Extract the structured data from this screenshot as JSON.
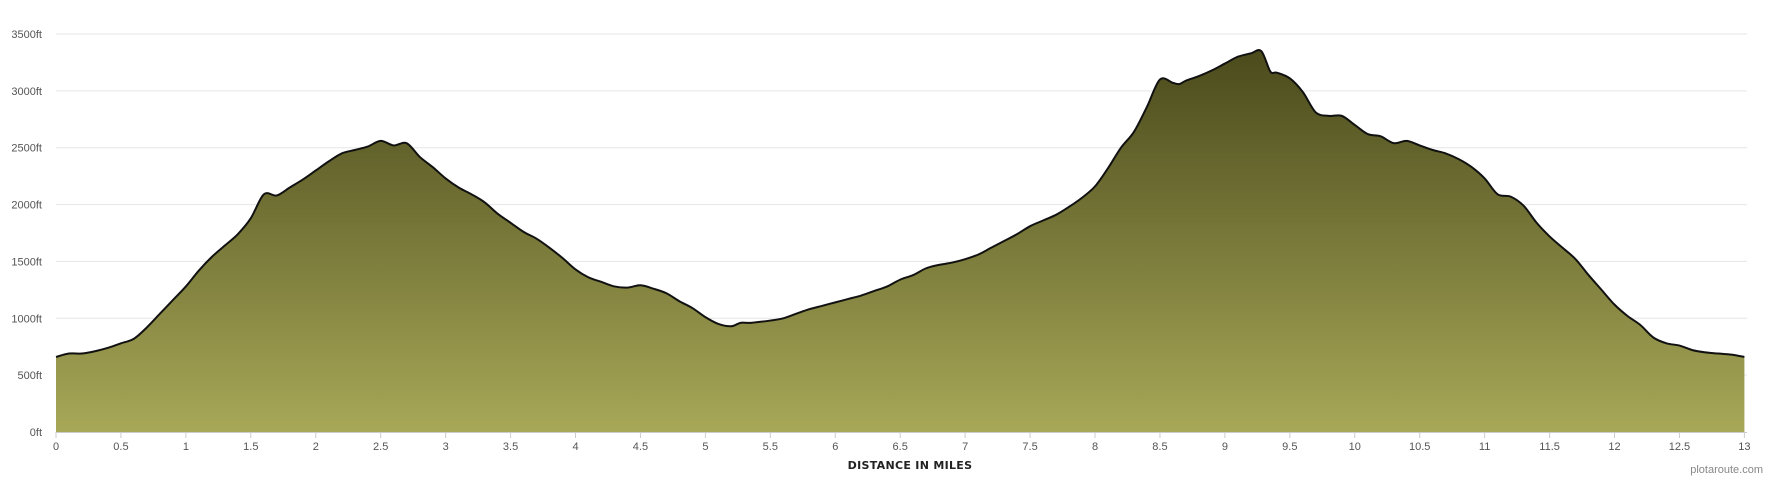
{
  "chart_data": {
    "type": "area",
    "title": "",
    "xlabel": "DISTANCE IN MILES",
    "ylabel": "",
    "credit": "plotaroute.com",
    "xlim": [
      0,
      13.02
    ],
    "ylim": [
      0,
      3500
    ],
    "grid": true,
    "x_ticks": [
      "0",
      "0.5",
      "1",
      "1.5",
      "2",
      "2.5",
      "3",
      "3.5",
      "4",
      "4.5",
      "5",
      "5.5",
      "6",
      "6.5",
      "7",
      "7.5",
      "8",
      "8.5",
      "9",
      "9.5",
      "10",
      "10.5",
      "11",
      "11.5",
      "12",
      "12.5",
      "13"
    ],
    "y_ticks": [
      "0ft",
      "500ft",
      "1000ft",
      "1500ft",
      "2000ft",
      "2500ft",
      "3000ft",
      "3500ft"
    ],
    "colors": {
      "fill_top": "#4a4a1c",
      "fill_bottom": "#a8a858",
      "line": "#111111",
      "grid": "#e6e6e6"
    },
    "series": [
      {
        "x": [
          0,
          0.1,
          0.2,
          0.3,
          0.4,
          0.5,
          0.6,
          0.7,
          0.8,
          0.9,
          1.0,
          1.1,
          1.2,
          1.3,
          1.4,
          1.5,
          1.6,
          1.7,
          1.8,
          1.9,
          2.0,
          2.1,
          2.2,
          2.3,
          2.4,
          2.5,
          2.6,
          2.7,
          2.8,
          2.9,
          3.0,
          3.1,
          3.2,
          3.3,
          3.4,
          3.5,
          3.6,
          3.7,
          3.8,
          3.9,
          4.0,
          4.1,
          4.2,
          4.3,
          4.4,
          4.5,
          4.6,
          4.7,
          4.8,
          4.9,
          5.0,
          5.1,
          5.2,
          5.27,
          5.35,
          5.5,
          5.6,
          5.7,
          5.8,
          5.9,
          6.0,
          6.1,
          6.2,
          6.3,
          6.4,
          6.5,
          6.6,
          6.7,
          6.8,
          6.9,
          7.0,
          7.1,
          7.2,
          7.3,
          7.4,
          7.5,
          7.6,
          7.7,
          7.8,
          7.9,
          8.0,
          8.1,
          8.2,
          8.3,
          8.4,
          8.5,
          8.6,
          8.65,
          8.7,
          8.8,
          8.9,
          9.0,
          9.1,
          9.2,
          9.28,
          9.35,
          9.4,
          9.5,
          9.6,
          9.7,
          9.8,
          9.9,
          10.0,
          10.1,
          10.2,
          10.3,
          10.4,
          10.5,
          10.6,
          10.7,
          10.8,
          10.9,
          11.0,
          11.1,
          11.2,
          11.3,
          11.4,
          11.5,
          11.6,
          11.7,
          11.8,
          11.9,
          12.0,
          12.1,
          12.2,
          12.3,
          12.4,
          12.5,
          12.6,
          12.7,
          12.8,
          12.9,
          13.0
        ],
        "values": [
          660,
          690,
          690,
          710,
          740,
          780,
          820,
          920,
          1040,
          1160,
          1280,
          1420,
          1540,
          1640,
          1740,
          1880,
          2090,
          2080,
          2150,
          2220,
          2300,
          2380,
          2450,
          2480,
          2510,
          2560,
          2520,
          2540,
          2420,
          2330,
          2230,
          2150,
          2090,
          2020,
          1920,
          1840,
          1760,
          1700,
          1620,
          1530,
          1430,
          1360,
          1320,
          1280,
          1270,
          1290,
          1260,
          1220,
          1150,
          1090,
          1010,
          950,
          930,
          960,
          960,
          980,
          1000,
          1040,
          1080,
          1110,
          1140,
          1170,
          1200,
          1240,
          1280,
          1340,
          1380,
          1440,
          1470,
          1490,
          1520,
          1560,
          1620,
          1680,
          1740,
          1810,
          1860,
          1910,
          1980,
          2060,
          2160,
          2320,
          2500,
          2640,
          2860,
          3100,
          3070,
          3060,
          3090,
          3130,
          3180,
          3240,
          3300,
          3330,
          3350,
          3170,
          3160,
          3110,
          2990,
          2810,
          2780,
          2780,
          2700,
          2620,
          2600,
          2540,
          2560,
          2520,
          2480,
          2450,
          2400,
          2330,
          2230,
          2090,
          2070,
          1990,
          1840,
          1720,
          1620,
          1520,
          1380,
          1250,
          1120,
          1020,
          940,
          830,
          780,
          760,
          720,
          700,
          690,
          680,
          660
        ]
      }
    ]
  }
}
